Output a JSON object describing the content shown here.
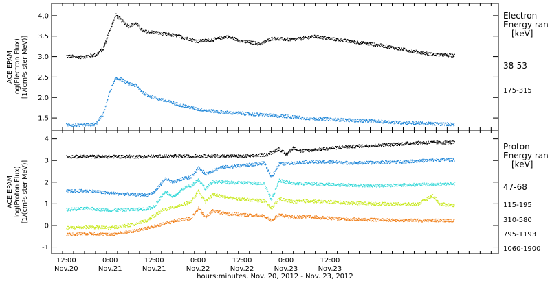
{
  "chart_data": [
    {
      "type": "scatter",
      "panel": "electron",
      "ylabel_lines": [
        "ACE EPAM",
        "log(Electron Flux)",
        "[1/(cm²s ster MeV)]"
      ],
      "ylim": [
        1.2,
        4.3
      ],
      "yticks": [
        1.5,
        2.0,
        2.5,
        3.0,
        3.5,
        4.0
      ],
      "ytick_labels": [
        "1.5",
        "2.0",
        "2.5",
        "3.0",
        "3.5",
        "4.0"
      ],
      "legend_title_lines": [
        "Electron",
        "Energy ran",
        "[keV]"
      ],
      "series": [
        {
          "name": "38-53",
          "color": "#000000",
          "points": [
            [
              0.0,
              3.02
            ],
            [
              4.0,
              3.0
            ],
            [
              8.0,
              3.05
            ],
            [
              10.0,
              3.2
            ],
            [
              12.0,
              3.7
            ],
            [
              13.5,
              4.02
            ],
            [
              15.0,
              3.9
            ],
            [
              17.0,
              3.75
            ],
            [
              19.0,
              3.82
            ],
            [
              21.0,
              3.62
            ],
            [
              24.0,
              3.6
            ],
            [
              30.0,
              3.52
            ],
            [
              36.0,
              3.38
            ],
            [
              40.0,
              3.42
            ],
            [
              44.0,
              3.5
            ],
            [
              48.0,
              3.38
            ],
            [
              53.0,
              3.32
            ],
            [
              56.0,
              3.45
            ],
            [
              62.0,
              3.42
            ],
            [
              68.0,
              3.5
            ],
            [
              74.0,
              3.42
            ],
            [
              80.0,
              3.35
            ],
            [
              86.0,
              3.28
            ],
            [
              92.0,
              3.18
            ],
            [
              96.0,
              3.12
            ],
            [
              100.0,
              3.06
            ],
            [
              104.0,
              3.04
            ],
            [
              106.0,
              3.03
            ]
          ]
        },
        {
          "name": "175-315",
          "color": "#1f86d8",
          "points": [
            [
              0.0,
              1.35
            ],
            [
              4.0,
              1.32
            ],
            [
              8.0,
              1.36
            ],
            [
              10.0,
              1.6
            ],
            [
              12.0,
              2.2
            ],
            [
              13.5,
              2.48
            ],
            [
              15.0,
              2.45
            ],
            [
              17.0,
              2.35
            ],
            [
              19.0,
              2.3
            ],
            [
              21.0,
              2.12
            ],
            [
              24.0,
              2.0
            ],
            [
              30.0,
              1.85
            ],
            [
              36.0,
              1.72
            ],
            [
              42.0,
              1.65
            ],
            [
              48.0,
              1.62
            ],
            [
              54.0,
              1.58
            ],
            [
              60.0,
              1.55
            ],
            [
              66.0,
              1.5
            ],
            [
              72.0,
              1.48
            ],
            [
              78.0,
              1.45
            ],
            [
              84.0,
              1.43
            ],
            [
              90.0,
              1.4
            ],
            [
              96.0,
              1.38
            ],
            [
              102.0,
              1.36
            ],
            [
              106.0,
              1.35
            ]
          ]
        }
      ]
    },
    {
      "type": "scatter",
      "panel": "proton",
      "ylabel_lines": [
        "ACE EPAM",
        "log(Proton Flux)",
        "[1/(cm²s ster MeV)]"
      ],
      "ylim": [
        -1.3,
        4.4
      ],
      "yticks": [
        -1,
        0,
        1,
        2,
        3,
        4
      ],
      "ytick_labels": [
        "-1",
        "0",
        "1",
        "2",
        "3",
        "4"
      ],
      "legend_title_lines": [
        "Proton",
        "Energy ran",
        "[keV]"
      ],
      "series": [
        {
          "name": "47-68",
          "color": "#000000",
          "points": [
            [
              0.0,
              3.2
            ],
            [
              10.0,
              3.2
            ],
            [
              20.0,
              3.2
            ],
            [
              30.0,
              3.22
            ],
            [
              40.0,
              3.22
            ],
            [
              50.0,
              3.22
            ],
            [
              55.0,
              3.3
            ],
            [
              58.0,
              3.55
            ],
            [
              60.0,
              3.3
            ],
            [
              62.0,
              3.6
            ],
            [
              64.0,
              3.45
            ],
            [
              70.0,
              3.55
            ],
            [
              76.0,
              3.65
            ],
            [
              82.0,
              3.7
            ],
            [
              88.0,
              3.75
            ],
            [
              94.0,
              3.82
            ],
            [
              100.0,
              3.85
            ],
            [
              106.0,
              3.85
            ]
          ]
        },
        {
          "name": "115-195",
          "color": "#1f86d8",
          "points": [
            [
              0.0,
              1.6
            ],
            [
              6.0,
              1.62
            ],
            [
              12.0,
              1.5
            ],
            [
              18.0,
              1.45
            ],
            [
              22.0,
              1.42
            ],
            [
              24.0,
              1.55
            ],
            [
              27.0,
              2.2
            ],
            [
              29.0,
              2.0
            ],
            [
              32.0,
              2.2
            ],
            [
              34.0,
              2.25
            ],
            [
              36.0,
              2.7
            ],
            [
              38.0,
              2.4
            ],
            [
              42.0,
              2.7
            ],
            [
              46.0,
              2.75
            ],
            [
              50.0,
              2.82
            ],
            [
              54.0,
              2.9
            ],
            [
              56.0,
              2.25
            ],
            [
              58.0,
              2.85
            ],
            [
              62.0,
              2.9
            ],
            [
              66.0,
              2.95
            ],
            [
              72.0,
              2.95
            ],
            [
              78.0,
              2.9
            ],
            [
              84.0,
              2.92
            ],
            [
              90.0,
              2.95
            ],
            [
              96.0,
              3.0
            ],
            [
              102.0,
              3.05
            ],
            [
              106.0,
              3.05
            ]
          ]
        },
        {
          "name": "310-580",
          "color": "#34d8d8",
          "points": [
            [
              0.0,
              0.75
            ],
            [
              6.0,
              0.8
            ],
            [
              12.0,
              0.72
            ],
            [
              18.0,
              0.75
            ],
            [
              22.0,
              0.78
            ],
            [
              24.0,
              0.9
            ],
            [
              27.0,
              1.6
            ],
            [
              29.0,
              1.3
            ],
            [
              32.0,
              1.75
            ],
            [
              34.0,
              1.85
            ],
            [
              36.0,
              2.15
            ],
            [
              38.0,
              1.7
            ],
            [
              40.0,
              2.05
            ],
            [
              44.0,
              2.0
            ],
            [
              50.0,
              1.98
            ],
            [
              54.0,
              1.95
            ],
            [
              56.0,
              1.2
            ],
            [
              58.0,
              2.1
            ],
            [
              62.0,
              1.95
            ],
            [
              66.0,
              1.95
            ],
            [
              72.0,
              1.9
            ],
            [
              78.0,
              1.88
            ],
            [
              84.0,
              1.85
            ],
            [
              90.0,
              1.88
            ],
            [
              96.0,
              1.9
            ],
            [
              102.0,
              1.92
            ],
            [
              106.0,
              1.95
            ]
          ]
        },
        {
          "name": "795-1193",
          "color": "#c8e81c",
          "points": [
            [
              0.0,
              -0.1
            ],
            [
              6.0,
              -0.05
            ],
            [
              12.0,
              -0.1
            ],
            [
              18.0,
              0.05
            ],
            [
              22.0,
              0.25
            ],
            [
              26.0,
              0.7
            ],
            [
              30.0,
              0.9
            ],
            [
              34.0,
              1.1
            ],
            [
              36.0,
              1.6
            ],
            [
              38.0,
              1.1
            ],
            [
              40.0,
              1.45
            ],
            [
              44.0,
              1.3
            ],
            [
              50.0,
              1.2
            ],
            [
              54.0,
              1.15
            ],
            [
              56.0,
              0.8
            ],
            [
              58.0,
              1.25
            ],
            [
              62.0,
              1.1
            ],
            [
              66.0,
              1.15
            ],
            [
              72.0,
              1.1
            ],
            [
              78.0,
              1.05
            ],
            [
              84.0,
              1.02
            ],
            [
              90.0,
              1.0
            ],
            [
              96.0,
              1.0
            ],
            [
              100.0,
              1.4
            ],
            [
              102.0,
              1.0
            ],
            [
              106.0,
              0.95
            ]
          ]
        },
        {
          "name": "1060-1900",
          "color": "#f0801c",
          "points": [
            [
              0.0,
              -0.4
            ],
            [
              6.0,
              -0.35
            ],
            [
              12.0,
              -0.4
            ],
            [
              18.0,
              -0.25
            ],
            [
              22.0,
              -0.1
            ],
            [
              26.0,
              0.05
            ],
            [
              30.0,
              0.25
            ],
            [
              34.0,
              0.35
            ],
            [
              36.0,
              0.8
            ],
            [
              38.0,
              0.4
            ],
            [
              40.0,
              0.7
            ],
            [
              44.0,
              0.55
            ],
            [
              50.0,
              0.5
            ],
            [
              54.0,
              0.45
            ],
            [
              56.0,
              0.25
            ],
            [
              58.0,
              0.5
            ],
            [
              62.0,
              0.4
            ],
            [
              66.0,
              0.42
            ],
            [
              72.0,
              0.35
            ],
            [
              78.0,
              0.3
            ],
            [
              84.0,
              0.28
            ],
            [
              90.0,
              0.26
            ],
            [
              96.0,
              0.25
            ],
            [
              102.0,
              0.25
            ],
            [
              106.0,
              0.25
            ]
          ]
        }
      ]
    }
  ],
  "x_axis": {
    "range_hours": [
      -4,
      118
    ],
    "data_end_hour": 106,
    "ticks": [
      {
        "hour": 0,
        "time": "12:00",
        "date": "Nov.20"
      },
      {
        "hour": 12,
        "time": "0:00",
        "date": "Nov.21"
      },
      {
        "hour": 24,
        "time": "12:00",
        "date": "Nov.21"
      },
      {
        "hour": 36,
        "time": "0:00",
        "date": "Nov.22"
      },
      {
        "hour": 48,
        "time": "12:00",
        "date": "Nov.22"
      },
      {
        "hour": 60,
        "time": "0:00",
        "date": "Nov.23"
      },
      {
        "hour": 72,
        "time": "12:00",
        "date": "Nov.23"
      }
    ],
    "title": "hours:minutes, Nov. 20, 2012 - Nov. 23, 2012"
  }
}
